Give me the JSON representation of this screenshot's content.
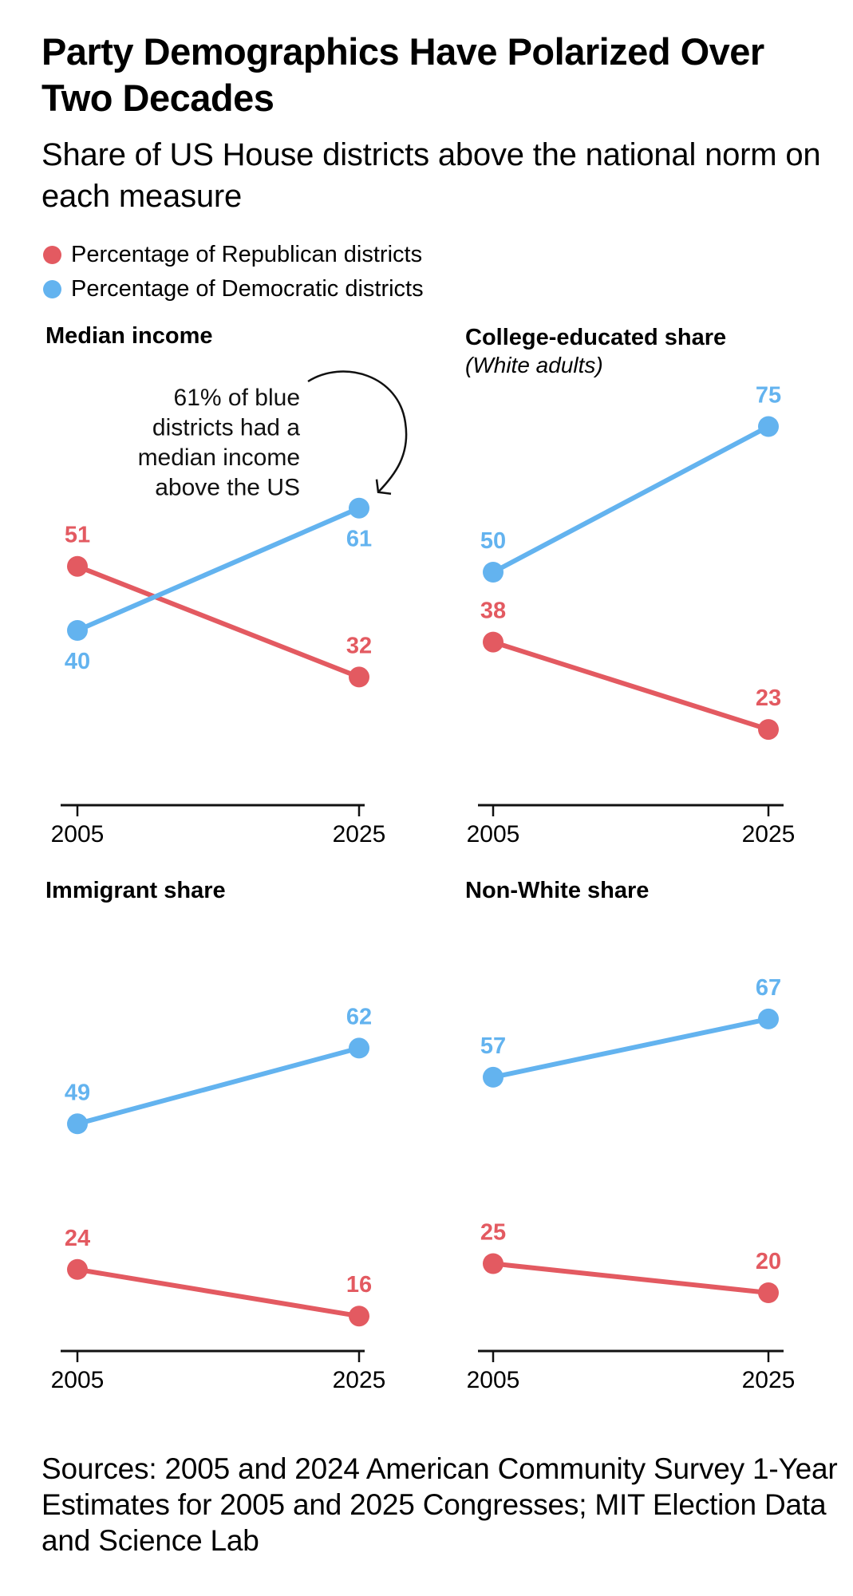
{
  "header": {
    "title": "Party Demographics Have Polarized Over Two Decades",
    "subtitle": "Share of US House districts above the national norm on each measure"
  },
  "legend": [
    {
      "label": "Percentage of Republican districts",
      "color": "#e35a61"
    },
    {
      "label": "Percentage of Democratic districts",
      "color": "#63b3ef"
    }
  ],
  "footer": {
    "sources": "Sources: 2005 and 2024 American Community Survey 1-Year Estimates for 2005 and 2025 Congresses; MIT Election Data and Science Lab"
  },
  "chart_data": [
    {
      "type": "line",
      "title": "Median income",
      "subtitle": "",
      "x": [
        "2005",
        "2025"
      ],
      "ylim": [
        10,
        80
      ],
      "series": [
        {
          "name": "Percentage of Republican districts",
          "color": "#e35a61",
          "values": [
            51,
            32
          ],
          "label_pos": [
            "above",
            "above"
          ]
        },
        {
          "name": "Percentage of Democratic districts",
          "color": "#63b3ef",
          "values": [
            40,
            61
          ],
          "label_pos": [
            "below",
            "below"
          ]
        }
      ],
      "annotation": {
        "lines": [
          "61% of blue",
          "districts had a",
          "median income",
          "above the US"
        ],
        "target_series": 1,
        "target_index": 1
      }
    },
    {
      "type": "line",
      "title": "College-educated share",
      "subtitle": "(White adults)",
      "x": [
        "2005",
        "2025"
      ],
      "ylim": [
        10,
        80
      ],
      "series": [
        {
          "name": "Percentage of Republican districts",
          "color": "#e35a61",
          "values": [
            38,
            23
          ],
          "label_pos": [
            "above",
            "above"
          ]
        },
        {
          "name": "Percentage of Democratic districts",
          "color": "#63b3ef",
          "values": [
            50,
            75
          ],
          "label_pos": [
            "above",
            "above"
          ]
        }
      ]
    },
    {
      "type": "line",
      "title": "Immigrant share",
      "subtitle": "",
      "x": [
        "2005",
        "2025"
      ],
      "ylim": [
        10,
        80
      ],
      "series": [
        {
          "name": "Percentage of Republican districts",
          "color": "#e35a61",
          "values": [
            24,
            16
          ],
          "label_pos": [
            "above",
            "above"
          ]
        },
        {
          "name": "Percentage of Democratic districts",
          "color": "#63b3ef",
          "values": [
            49,
            62
          ],
          "label_pos": [
            "above",
            "above"
          ]
        }
      ]
    },
    {
      "type": "line",
      "title": "Non-White share",
      "subtitle": "",
      "x": [
        "2005",
        "2025"
      ],
      "ylim": [
        10,
        80
      ],
      "series": [
        {
          "name": "Percentage of Republican districts",
          "color": "#e35a61",
          "values": [
            25,
            20
          ],
          "label_pos": [
            "above",
            "above"
          ]
        },
        {
          "name": "Percentage of Democratic districts",
          "color": "#63b3ef",
          "values": [
            57,
            67
          ],
          "label_pos": [
            "above",
            "above"
          ]
        }
      ]
    }
  ]
}
